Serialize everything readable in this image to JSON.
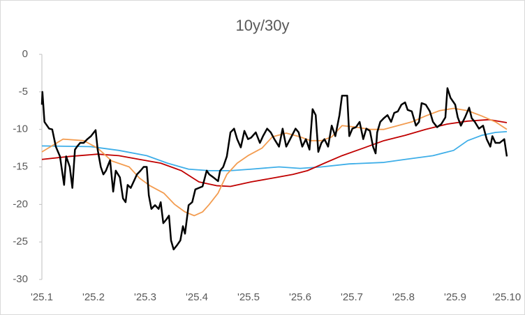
{
  "chart_data": {
    "type": "line",
    "title": "10y/30y",
    "xlim": [
      0,
      9
    ],
    "xticks": [
      {
        "value": 0,
        "label": "'25.1"
      },
      {
        "value": 1,
        "label": "'25.2"
      },
      {
        "value": 2,
        "label": "'25.3"
      },
      {
        "value": 3,
        "label": "'25.4"
      },
      {
        "value": 4,
        "label": "'25.5"
      },
      {
        "value": 5,
        "label": "'25.6"
      },
      {
        "value": 6,
        "label": "'25.7"
      },
      {
        "value": 7,
        "label": "'25.8"
      },
      {
        "value": 8,
        "label": "'25.9"
      },
      {
        "value": 9,
        "label": "'25.10"
      }
    ],
    "ylim": [
      -30,
      0
    ],
    "yticks": [
      0,
      -5,
      -10,
      -15,
      -20,
      -25,
      -30
    ],
    "grid": false,
    "series": [
      {
        "color": "#3eaee8",
        "width": 1.8,
        "x": [
          0,
          0.95,
          1.49,
          2.03,
          2.43,
          2.84,
          3.24,
          3.65,
          4.05,
          4.59,
          5.0,
          5.41,
          5.95,
          6.62,
          7.03,
          7.57,
          7.97,
          8.24,
          8.51,
          8.78,
          9
        ],
        "values": [
          -12.2,
          -12.3,
          -12.8,
          -13.5,
          -14.5,
          -15.3,
          -15.5,
          -15.5,
          -15.3,
          -15,
          -15.2,
          -15,
          -14.6,
          -14.4,
          -14,
          -13.5,
          -12.8,
          -11.5,
          -10.8,
          -10.4,
          -10.3
        ]
      },
      {
        "color": "#c00000",
        "width": 1.8,
        "x": [
          0,
          0.54,
          1.08,
          1.49,
          1.89,
          2.3,
          2.7,
          3.04,
          3.38,
          3.65,
          4.05,
          4.46,
          4.86,
          5.14,
          5.47,
          5.81,
          6.22,
          6.62,
          7.03,
          7.43,
          7.84,
          8.24,
          8.65,
          9
        ],
        "values": [
          -14,
          -13.6,
          -13.3,
          -13.5,
          -14,
          -14.5,
          -15.5,
          -17,
          -17.5,
          -17.6,
          -17,
          -16.5,
          -16,
          -15.5,
          -14.5,
          -13.5,
          -12.5,
          -11.5,
          -10.8,
          -10,
          -9.3,
          -8.9,
          -8.7,
          -9.1
        ]
      },
      {
        "color": "#f39c50",
        "width": 1.8,
        "x": [
          0,
          0.41,
          0.81,
          1.08,
          1.35,
          1.69,
          1.89,
          2.09,
          2.36,
          2.57,
          2.77,
          2.95,
          3.11,
          3.24,
          3.41,
          3.58,
          3.78,
          3.99,
          4.26,
          4.46,
          4.73,
          5.0,
          5.2,
          5.41,
          5.61,
          5.81,
          6.08,
          6.35,
          6.62,
          6.89,
          7.16,
          7.43,
          7.7,
          7.97,
          8.24,
          8.51,
          8.78,
          9
        ],
        "values": [
          -13,
          -11.3,
          -11.5,
          -12.5,
          -14.2,
          -15,
          -16.5,
          -17.5,
          -18.5,
          -20,
          -21,
          -21.5,
          -21,
          -20,
          -18.5,
          -16,
          -14.5,
          -13.5,
          -12.5,
          -11,
          -10.5,
          -11,
          -11.5,
          -11.5,
          -11,
          -9.5,
          -9.7,
          -10,
          -10,
          -9.5,
          -9,
          -8.2,
          -7.5,
          -7.2,
          -7.5,
          -8.2,
          -9,
          -10
        ]
      },
      {
        "color": "#000000",
        "width": 2.5,
        "x": [
          0,
          0.01,
          0.05,
          0.14,
          0.2,
          0.27,
          0.35,
          0.43,
          0.47,
          0.54,
          0.59,
          0.64,
          0.68,
          0.74,
          0.81,
          0.88,
          0.95,
          1.04,
          1.08,
          1.14,
          1.19,
          1.24,
          1.32,
          1.38,
          1.43,
          1.51,
          1.57,
          1.62,
          1.66,
          1.72,
          1.78,
          1.84,
          1.91,
          1.97,
          2.03,
          2.07,
          2.12,
          2.19,
          2.26,
          2.3,
          2.35,
          2.41,
          2.46,
          2.5,
          2.55,
          2.62,
          2.68,
          2.73,
          2.77,
          2.84,
          2.91,
          2.97,
          3.04,
          3.11,
          3.19,
          3.24,
          3.32,
          3.41,
          3.45,
          3.51,
          3.58,
          3.65,
          3.72,
          3.78,
          3.85,
          3.92,
          3.99,
          4.05,
          4.14,
          4.22,
          4.28,
          4.36,
          4.43,
          4.5,
          4.59,
          4.66,
          4.73,
          4.82,
          4.91,
          4.97,
          5.04,
          5.11,
          5.18,
          5.24,
          5.3,
          5.35,
          5.41,
          5.47,
          5.54,
          5.61,
          5.68,
          5.76,
          5.81,
          5.91,
          5.95,
          6.01,
          6.08,
          6.15,
          6.22,
          6.28,
          6.35,
          6.41,
          6.46,
          6.49,
          6.55,
          6.62,
          6.69,
          6.76,
          6.82,
          6.89,
          6.96,
          7.03,
          7.08,
          7.16,
          7.24,
          7.3,
          7.35,
          7.43,
          7.51,
          7.57,
          7.65,
          7.73,
          7.81,
          7.85,
          7.91,
          8.0,
          8.05,
          8.11,
          8.19,
          8.27,
          8.32,
          8.38,
          8.46,
          8.54,
          8.61,
          8.68,
          8.72,
          8.78,
          8.86,
          8.95,
          9.0
        ],
        "values": [
          -6.7,
          -5.0,
          -9.0,
          -9.9,
          -10.0,
          -12.3,
          -13.6,
          -17.4,
          -13.6,
          -15.0,
          -17.8,
          -12.7,
          -12.3,
          -11.8,
          -11.8,
          -11.3,
          -10.9,
          -10.1,
          -12.7,
          -15.0,
          -16.0,
          -15.5,
          -14.1,
          -18.3,
          -15.5,
          -16.4,
          -19.2,
          -19.7,
          -17.4,
          -17.8,
          -16.9,
          -16.0,
          -15.5,
          -15.0,
          -15.0,
          -18.8,
          -20.6,
          -20.1,
          -20.6,
          -19.7,
          -22.5,
          -22.0,
          -21.5,
          -24.8,
          -26.0,
          -25.4,
          -24.8,
          -22.9,
          -23.9,
          -20.1,
          -19.7,
          -18.0,
          -17.8,
          -17.6,
          -15.5,
          -16.0,
          -16.4,
          -16.9,
          -15.5,
          -15.0,
          -13.6,
          -10.4,
          -9.9,
          -11.3,
          -12.4,
          -10.2,
          -11.3,
          -11.1,
          -10.4,
          -11.8,
          -10.9,
          -9.9,
          -10.4,
          -11.3,
          -12.3,
          -9.9,
          -12.3,
          -11.1,
          -9.9,
          -10.4,
          -12.3,
          -11.3,
          -12.7,
          -7.3,
          -8.1,
          -13.0,
          -11.8,
          -11.3,
          -12.3,
          -9.5,
          -10.9,
          -8.1,
          -5.5,
          -5.5,
          -10.9,
          -9.9,
          -9.7,
          -9.0,
          -11.3,
          -9.9,
          -10.2,
          -12.3,
          -13.2,
          -10.4,
          -9.0,
          -8.5,
          -8.1,
          -9.0,
          -7.8,
          -7.6,
          -6.7,
          -6.4,
          -7.4,
          -7.6,
          -9.5,
          -9.0,
          -6.5,
          -6.7,
          -7.6,
          -9.0,
          -9.7,
          -9.3,
          -8.4,
          -4.5,
          -5.8,
          -6.7,
          -8.4,
          -9.5,
          -8.4,
          -7.1,
          -8.5,
          -9.0,
          -9.9,
          -9.5,
          -11.3,
          -12.3,
          -10.9,
          -11.8,
          -11.8,
          -11.3,
          -13.6
        ]
      }
    ]
  }
}
